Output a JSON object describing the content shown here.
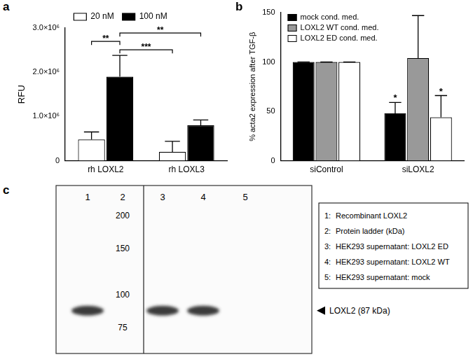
{
  "chart_data": [
    {
      "panel": "a",
      "type": "bar",
      "categories": [
        "rh LOXL2",
        "rh LOXL3"
      ],
      "series": [
        {
          "name": "20 nM",
          "color": "#ffffff",
          "values": [
            480000,
            200000
          ],
          "errors": [
            170000,
            240000
          ]
        },
        {
          "name": "100 nM",
          "color": "#000000",
          "values": [
            1900000,
            800000
          ],
          "errors": [
            480000,
            120000
          ]
        }
      ],
      "y_label": "RFU",
      "ylim": [
        0,
        3000000
      ],
      "yticks": [
        0,
        {
          "value": 1000000,
          "label": "1.0×10⁶"
        },
        {
          "value": 2000000,
          "label": "2.0×10⁶"
        },
        {
          "value": 3000000,
          "label": "3.0×10⁶"
        }
      ],
      "grid": false,
      "legend": "top",
      "comparisons": [
        {
          "label": "***",
          "from": {
            "category": "rh LOXL2",
            "series": "100 nM"
          },
          "to": {
            "category": "rh LOXL3",
            "series": "20 nM"
          }
        },
        {
          "label": "**",
          "from": {
            "category": "rh LOXL2",
            "series": "20 nM"
          },
          "to": {
            "category": "rh LOXL2",
            "series": "100 nM"
          }
        },
        {
          "label": "**",
          "from": {
            "category": "rh LOXL2",
            "series": "100 nM"
          },
          "to": {
            "category": "rh LOXL3",
            "series": "100 nM"
          }
        }
      ]
    },
    {
      "panel": "b",
      "type": "bar",
      "categories": [
        "siControl",
        "siLOXL2"
      ],
      "series": [
        {
          "name": "mock cond. med.",
          "color": "#000000",
          "values": [
            100,
            48
          ],
          "errors": [
            0,
            11
          ],
          "significance": [
            null,
            "*"
          ]
        },
        {
          "name": "LOXL2 WT cond. med.",
          "color": "#999999",
          "values": [
            100,
            104
          ],
          "errors": [
            0,
            43
          ],
          "significance": [
            null,
            null
          ]
        },
        {
          "name": "LOXL2 ED cond. med.",
          "color": "#ffffff",
          "values": [
            100,
            44
          ],
          "errors": [
            0,
            22
          ],
          "significance": [
            null,
            "*"
          ]
        }
      ],
      "y_label": "% acta2 expression after TGF-β",
      "ylim": [
        0,
        150
      ],
      "yticks": [
        0,
        50,
        100,
        150
      ],
      "grid": false,
      "legend": "top-left"
    }
  ],
  "blot": {
    "panel": "c",
    "lanes": [
      {
        "label": "1",
        "band": true
      },
      {
        "label": "2",
        "ladder": [
          200,
          150,
          100,
          75
        ]
      },
      {
        "label": "3",
        "band": true
      },
      {
        "label": "4",
        "band": true
      },
      {
        "label": "5",
        "band": false
      }
    ],
    "legend": [
      {
        "key": "1:",
        "text": "Recombinant LOXL2"
      },
      {
        "key": "2:",
        "text": "Protein ladder (kDa)"
      },
      {
        "key": "3:",
        "text": "HEK293 supernatant: LOXL2 ED"
      },
      {
        "key": "4:",
        "text": "HEK293 supernatant: LOXL2 WT"
      },
      {
        "key": "5:",
        "text": "HEK293 supernatant: mock"
      }
    ],
    "band_label": "LOXL2 (87 kDa)",
    "band_kda": 87
  }
}
